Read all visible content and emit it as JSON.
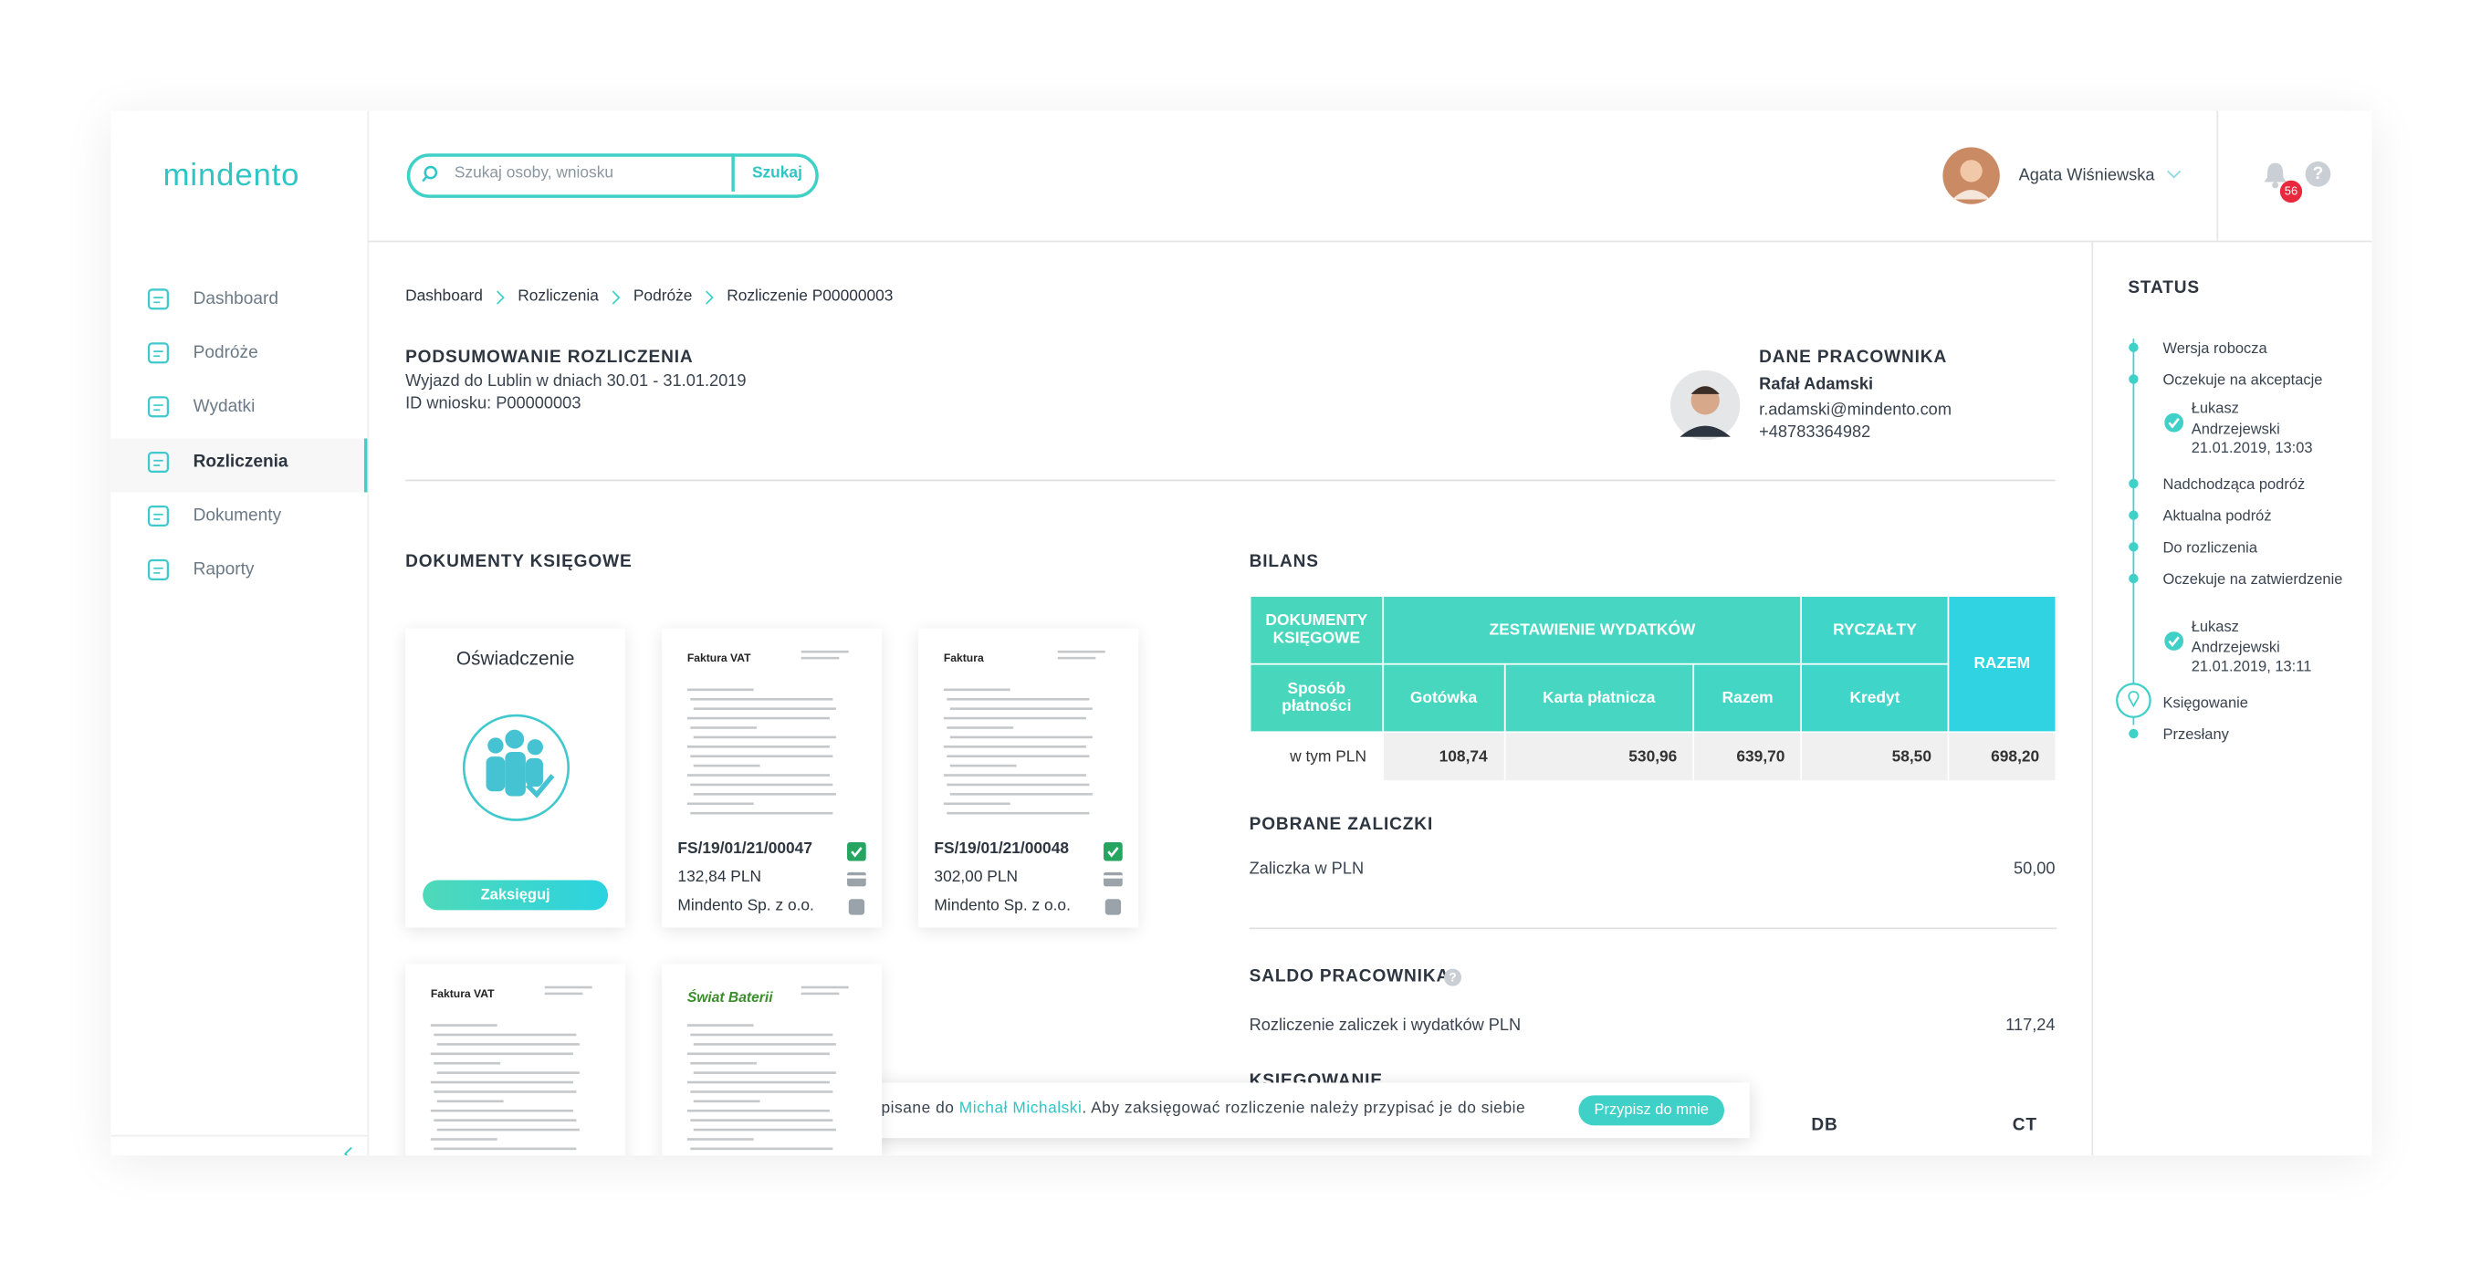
{
  "sidebar": {
    "logo": "mindento",
    "nav": [
      "Dashboard",
      "Podróże",
      "Wydatki",
      "Rozliczenia",
      "Dokumenty",
      "Raporty"
    ],
    "active": 3
  },
  "header": {
    "search_placeholder": "Szukaj osoby, wniosku",
    "search_button": "Szukaj",
    "user_name": "Agata Wiśniewska",
    "notifications": 56
  },
  "breadcrumb": [
    "Dashboard",
    "Rozliczenia",
    "Podróże",
    "Rozliczenie P00000003"
  ],
  "summary": {
    "title": "PODSUMOWANIE ROZLICZENIA",
    "trip": "Wyjazd do Lublin w dniach 30.01 - 31.01.2019",
    "request_id": "ID wniosku: P00000003"
  },
  "employee": {
    "title": "DANE PRACOWNIKA",
    "name": "Rafał Adamski",
    "email": "r.adamski@mindento.com",
    "phone": "+48783364982"
  },
  "documents": {
    "title": "DOKUMENTY KSIĘGOWE",
    "statement": {
      "title": "Oświadczenie",
      "button": "Zaksięguj"
    },
    "cards": [
      {
        "heading": "Faktura VAT",
        "number": "FS/19/01/21/00047",
        "amount": "132,84 PLN",
        "company": "Mindento Sp. z o.o."
      },
      {
        "heading": "Faktura",
        "number": "FS/19/01/21/00048",
        "amount": "302,00 PLN",
        "company": "Mindento Sp. z o.o."
      }
    ],
    "previews": [
      {
        "heading": "Faktura VAT"
      },
      {
        "heading": "Świat Baterii"
      }
    ]
  },
  "bilans": {
    "title": "BILANS",
    "group_headers": [
      "DOKUMENTY KSIĘGOWE",
      "ZESTAWIENIE WYDATKÓW",
      "RYCZAŁTY",
      "RAZEM"
    ],
    "sub_headers": [
      "Sposób płatności",
      "Gotówka",
      "Karta płatnicza",
      "Razem",
      "Kredyt"
    ],
    "row_label": "w tym PLN",
    "values": [
      "108,74",
      "530,96",
      "639,70",
      "58,50",
      "698,20"
    ]
  },
  "advances": {
    "title": "POBRANE ZALICZKI",
    "label": "Zaliczka w PLN",
    "value": "50,00"
  },
  "balance": {
    "title": "SALDO PRACOWNIKA",
    "label": "Rozliczenie zaliczek i wydatków PLN",
    "value": "117,24"
  },
  "booking": {
    "title": "KSIĘGOWANIE",
    "columns": [
      "DB",
      "CT"
    ]
  },
  "toast": {
    "text_before": "Rozliczenia przypisane do",
    "person": "Michał Michalski",
    "text_after": ". Aby zaksięgować rozliczenie należy przypisać je do siebie",
    "button": "Przypisz do mnie"
  },
  "status": {
    "title": "STATUS",
    "items": [
      {
        "label": "Wersja robocza"
      },
      {
        "label": "Oczekuje na akceptacje"
      },
      {
        "approver": "Łukasz Andrzejewski",
        "date": "21.01.2019, 13:03"
      },
      {
        "label": "Nadchodząca podróż"
      },
      {
        "label": "Aktualna podróż"
      },
      {
        "label": "Do rozliczenia"
      },
      {
        "label": "Oczekuje na zatwierdzenie"
      },
      {
        "approver": "Łukasz Andrzejewski",
        "date": "21.01.2019, 13:11"
      },
      {
        "label": "Księgowanie",
        "current": true
      },
      {
        "label": "Przesłany"
      }
    ]
  }
}
